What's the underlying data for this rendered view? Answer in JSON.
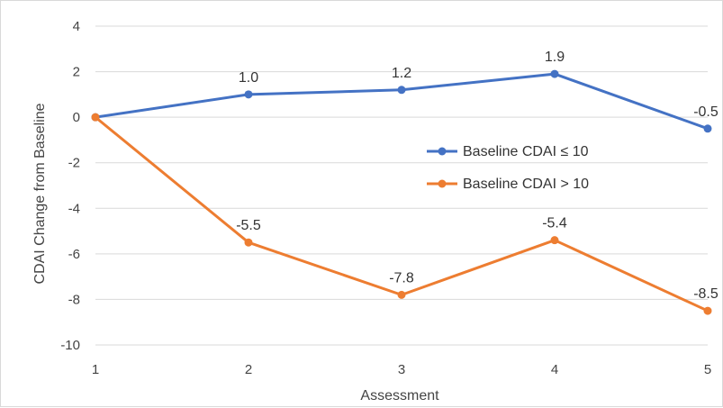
{
  "chart_data": {
    "type": "line",
    "title": "",
    "xlabel": "Assessment",
    "ylabel": "CDAI Change from Baseline",
    "categories": [
      "1",
      "2",
      "3",
      "4",
      "5"
    ],
    "ylim": [
      -10,
      4
    ],
    "yticks": [
      4,
      2,
      0,
      -2,
      -4,
      -6,
      -8,
      -10
    ],
    "yticks_labels": [
      "4",
      "2",
      "0",
      "-2",
      "-4",
      "-6",
      "-8",
      "-10"
    ],
    "grid": "horizontal",
    "legend_position": "right-middle",
    "series": [
      {
        "name": "Baseline CDAI ≤ 10",
        "values": [
          0,
          1.0,
          1.2,
          1.9,
          -0.5
        ],
        "labels": [
          "",
          "1.0",
          "1.2",
          "1.9",
          "-0.5"
        ],
        "color": "#4472C4"
      },
      {
        "name": "Baseline CDAI > 10",
        "values": [
          0,
          -5.5,
          -7.8,
          -5.4,
          -8.5
        ],
        "labels": [
          "",
          "-5.5",
          "-7.8",
          "-5.4",
          "-8.5"
        ],
        "color": "#ED7D31"
      }
    ]
  }
}
